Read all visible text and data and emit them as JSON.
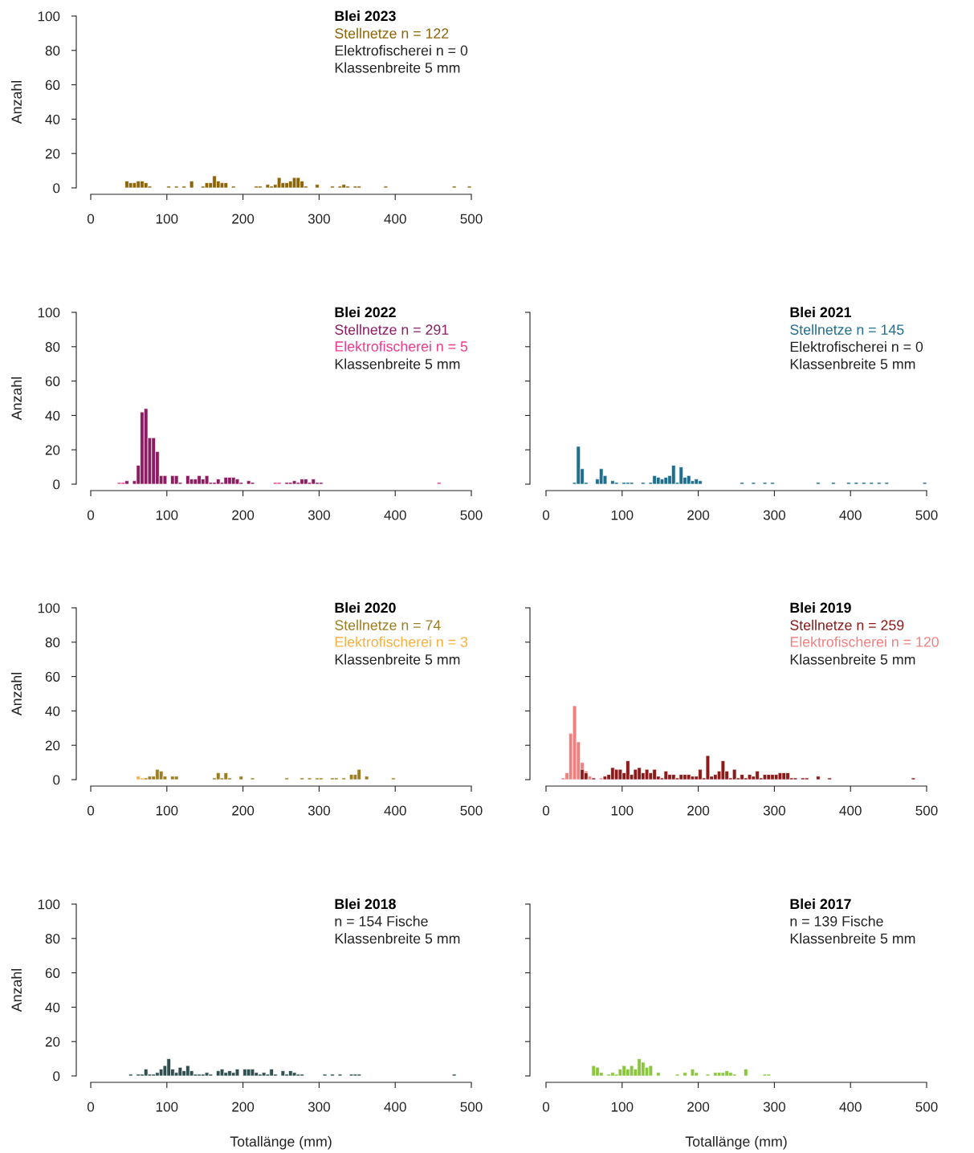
{
  "chart_data": [
    {
      "type": "histogram",
      "title": "Blei 2023",
      "ylabel": "Anzahl",
      "annotations": [
        "Elektrofischerei n = 0",
        "Klassenbreite 5 mm"
      ],
      "legend": "top right",
      "xlim": [
        0,
        500
      ],
      "ylim": [
        0,
        100
      ],
      "xticks": [
        0,
        100,
        200,
        300,
        400,
        500
      ],
      "yticks": [
        0,
        20,
        40,
        60,
        80,
        100
      ],
      "bins": [
        0,
        5,
        10,
        15,
        20,
        25,
        30,
        35,
        40,
        45,
        50,
        55,
        60,
        65,
        70,
        75,
        80,
        85,
        90,
        95,
        100,
        105,
        110,
        115,
        120,
        125,
        130,
        135,
        140,
        145,
        150,
        155,
        160,
        165,
        170,
        175,
        180,
        185,
        190,
        195,
        200,
        205,
        210,
        215,
        220,
        225,
        230,
        235,
        240,
        245,
        250,
        255,
        260,
        265,
        270,
        275,
        280,
        285,
        290,
        295,
        300,
        305,
        310,
        315,
        320,
        325,
        330,
        335,
        340,
        345,
        350,
        355,
        360,
        365,
        370,
        375,
        380,
        385,
        390,
        395,
        400,
        405,
        410,
        415,
        420,
        425,
        430,
        435,
        440,
        445,
        450,
        455,
        460,
        465,
        470,
        475,
        480,
        485,
        490,
        495,
        500
      ],
      "series": [
        {
          "name": "Stellnetze n = 122",
          "color": "#8b6508",
          "values": [
            0,
            0,
            0,
            0,
            0,
            0,
            0,
            0,
            0,
            4,
            3,
            3,
            4,
            4,
            3,
            1,
            0,
            0,
            0,
            0,
            1,
            0,
            1,
            0,
            1,
            0,
            4,
            0,
            0,
            1,
            3,
            3,
            7,
            4,
            3,
            3,
            0,
            1,
            0,
            0,
            0,
            0,
            0,
            1,
            1,
            0,
            2,
            1,
            2,
            6,
            3,
            3,
            4,
            6,
            6,
            4,
            1,
            0,
            0,
            2,
            0,
            0,
            0,
            1,
            0,
            1,
            2,
            1,
            0,
            1,
            1,
            0,
            0,
            0,
            0,
            0,
            0,
            1,
            0,
            0,
            0,
            0,
            0,
            0,
            0,
            0,
            0,
            0,
            0,
            0,
            0,
            0,
            0,
            0,
            0,
            1,
            0,
            0,
            0,
            1
          ]
        }
      ]
    },
    {
      "type": "histogram",
      "title": "Blei 2022",
      "ylabel": "Anzahl",
      "annotations": [
        "Klassenbreite 5 mm"
      ],
      "legend": "top right",
      "xlim": [
        0,
        500
      ],
      "ylim": [
        0,
        100
      ],
      "xticks": [
        0,
        100,
        200,
        300,
        400,
        500
      ],
      "yticks": [
        0,
        20,
        40,
        60,
        80,
        100
      ],
      "bins": [
        0,
        5,
        10,
        15,
        20,
        25,
        30,
        35,
        40,
        45,
        50,
        55,
        60,
        65,
        70,
        75,
        80,
        85,
        90,
        95,
        100,
        105,
        110,
        115,
        120,
        125,
        130,
        135,
        140,
        145,
        150,
        155,
        160,
        165,
        170,
        175,
        180,
        185,
        190,
        195,
        200,
        205,
        210,
        215,
        220,
        225,
        230,
        235,
        240,
        245,
        250,
        255,
        260,
        265,
        270,
        275,
        280,
        285,
        290,
        295,
        300,
        305,
        310,
        315,
        320,
        325,
        330,
        335,
        340,
        345,
        350,
        355,
        360,
        365,
        370,
        375,
        380,
        385,
        390,
        395,
        400,
        405,
        410,
        415,
        420,
        425,
        430,
        435,
        440,
        445,
        450,
        455,
        460,
        465,
        470,
        475,
        480,
        485,
        490,
        495,
        500
      ],
      "series": [
        {
          "name": "Stellnetze n = 291",
          "color": "#8b1c62",
          "values": [
            0,
            0,
            0,
            0,
            0,
            0,
            0,
            0,
            0,
            2,
            0,
            2,
            11,
            42,
            44,
            27,
            27,
            19,
            5,
            5,
            0,
            5,
            5,
            1,
            0,
            5,
            3,
            3,
            5,
            3,
            5,
            1,
            1,
            3,
            1,
            4,
            4,
            4,
            3,
            1,
            0,
            2,
            1,
            0,
            0,
            0,
            0,
            0,
            0,
            0,
            0,
            1,
            1,
            2,
            1,
            3,
            3,
            1,
            3,
            1,
            1,
            0,
            0,
            0,
            0,
            0,
            0,
            0,
            0,
            0,
            0,
            0,
            0,
            0,
            0,
            0,
            0,
            0,
            0,
            0,
            0,
            0,
            0,
            0,
            0,
            0,
            0,
            0,
            0,
            0,
            0,
            0,
            0,
            0,
            0,
            0,
            0,
            0,
            0,
            0
          ]
        },
        {
          "name": "Elektrofischerei n = 5",
          "color": "#ee3a8c",
          "values": [
            0,
            0,
            0,
            0,
            0,
            0,
            0,
            1,
            1,
            0,
            0,
            0,
            0,
            0,
            0,
            0,
            0,
            0,
            0,
            0,
            0,
            0,
            0,
            0,
            0,
            0,
            0,
            0,
            0,
            0,
            0,
            0,
            0,
            0,
            0,
            0,
            0,
            0,
            0,
            0,
            0,
            0,
            0,
            0,
            0,
            0,
            0,
            0,
            1,
            1,
            0,
            0,
            0,
            0,
            0,
            0,
            0,
            0,
            0,
            0,
            0,
            0,
            0,
            0,
            0,
            0,
            0,
            0,
            0,
            0,
            0,
            0,
            0,
            0,
            0,
            0,
            0,
            0,
            0,
            0,
            0,
            0,
            0,
            0,
            0,
            0,
            0,
            0,
            0,
            0,
            0,
            1,
            0,
            0,
            0,
            0,
            0,
            0,
            0,
            0
          ]
        }
      ]
    },
    {
      "type": "histogram",
      "title": "Blei 2021",
      "tick_labels": "x",
      "annotations": [
        "Elektrofischerei n = 0",
        "Klassenbreite 5 mm"
      ],
      "legend": "top right",
      "xlim": [
        0,
        500
      ],
      "ylim": [
        0,
        100
      ],
      "xticks": [
        0,
        100,
        200,
        300,
        400,
        500
      ],
      "yticks": [
        0,
        20,
        40,
        60,
        80,
        100
      ],
      "bins": [
        0,
        5,
        10,
        15,
        20,
        25,
        30,
        35,
        40,
        45,
        50,
        55,
        60,
        65,
        70,
        75,
        80,
        85,
        90,
        95,
        100,
        105,
        110,
        115,
        120,
        125,
        130,
        135,
        140,
        145,
        150,
        155,
        160,
        165,
        170,
        175,
        180,
        185,
        190,
        195,
        200,
        205,
        210,
        215,
        220,
        225,
        230,
        235,
        240,
        245,
        250,
        255,
        260,
        265,
        270,
        275,
        280,
        285,
        290,
        295,
        300,
        305,
        310,
        315,
        320,
        325,
        330,
        335,
        340,
        345,
        350,
        355,
        360,
        365,
        370,
        375,
        380,
        385,
        390,
        395,
        400,
        405,
        410,
        415,
        420,
        425,
        430,
        435,
        440,
        445,
        450,
        455,
        460,
        465,
        470,
        475,
        480,
        485,
        490,
        495,
        500
      ],
      "series": [
        {
          "name": "Stellnetze n = 145",
          "color": "#1e6e8e",
          "values": [
            0,
            0,
            0,
            0,
            0,
            0,
            0,
            1,
            22,
            9,
            1,
            0,
            0,
            3,
            9,
            5,
            0,
            2,
            1,
            0,
            1,
            1,
            1,
            0,
            0,
            1,
            0,
            1,
            5,
            4,
            3,
            4,
            5,
            11,
            1,
            10,
            4,
            5,
            2,
            3,
            2,
            0,
            0,
            0,
            0,
            0,
            0,
            0,
            0,
            0,
            0,
            1,
            0,
            0,
            1,
            0,
            0,
            1,
            0,
            1,
            0,
            0,
            0,
            0,
            0,
            0,
            0,
            0,
            0,
            0,
            0,
            1,
            0,
            0,
            0,
            1,
            0,
            0,
            0,
            1,
            0,
            1,
            0,
            1,
            0,
            1,
            0,
            1,
            0,
            1,
            0,
            0,
            0,
            0,
            0,
            0,
            0,
            0,
            0,
            1
          ]
        }
      ]
    },
    {
      "type": "histogram",
      "title": "Blei 2020",
      "ylabel": "Anzahl",
      "annotations": [
        "Klassenbreite 5 mm"
      ],
      "legend": "top right",
      "xlim": [
        0,
        500
      ],
      "ylim": [
        0,
        100
      ],
      "xticks": [
        0,
        100,
        200,
        300,
        400,
        500
      ],
      "yticks": [
        0,
        20,
        40,
        60,
        80,
        100
      ],
      "bins": [
        0,
        5,
        10,
        15,
        20,
        25,
        30,
        35,
        40,
        45,
        50,
        55,
        60,
        65,
        70,
        75,
        80,
        85,
        90,
        95,
        100,
        105,
        110,
        115,
        120,
        125,
        130,
        135,
        140,
        145,
        150,
        155,
        160,
        165,
        170,
        175,
        180,
        185,
        190,
        195,
        200,
        205,
        210,
        215,
        220,
        225,
        230,
        235,
        240,
        245,
        250,
        255,
        260,
        265,
        270,
        275,
        280,
        285,
        290,
        295,
        300,
        305,
        310,
        315,
        320,
        325,
        330,
        335,
        340,
        345,
        350,
        355,
        360,
        365,
        370,
        375,
        380,
        385,
        390,
        395,
        400,
        405,
        410,
        415,
        420,
        425,
        430,
        435,
        440,
        445,
        450,
        455,
        460,
        465,
        470,
        475,
        480,
        485,
        490,
        495,
        500
      ],
      "series": [
        {
          "name": "Stellnetze n = 74",
          "color": "#9c7e22",
          "values": [
            0,
            0,
            0,
            0,
            0,
            0,
            0,
            0,
            0,
            0,
            0,
            0,
            0,
            0,
            1,
            2,
            2,
            6,
            5,
            2,
            0,
            2,
            2,
            0,
            0,
            0,
            0,
            0,
            0,
            0,
            0,
            0,
            1,
            4,
            1,
            4,
            1,
            0,
            0,
            2,
            0,
            0,
            1,
            0,
            0,
            0,
            0,
            0,
            0,
            0,
            0,
            1,
            0,
            0,
            0,
            1,
            0,
            1,
            0,
            1,
            1,
            0,
            0,
            1,
            1,
            0,
            1,
            0,
            3,
            3,
            6,
            0,
            2,
            0,
            0,
            0,
            0,
            0,
            0,
            1,
            0,
            0,
            0,
            0,
            0,
            0,
            0,
            0,
            0,
            0,
            0,
            0,
            0,
            0,
            0,
            0,
            0,
            0,
            0,
            0
          ]
        },
        {
          "name": "Elektrofischerei n = 3",
          "color": "#f5b041",
          "values": [
            0,
            0,
            0,
            0,
            0,
            0,
            0,
            0,
            0,
            0,
            0,
            0,
            2,
            1,
            0,
            0,
            0,
            0,
            0,
            0,
            0,
            0,
            0,
            0,
            0,
            0,
            0,
            0,
            0,
            0,
            0,
            0,
            0,
            0,
            0,
            0,
            0,
            0,
            0,
            0,
            0,
            0,
            0,
            0,
            0,
            0,
            0,
            0,
            0,
            0,
            0,
            0,
            0,
            0,
            0,
            0,
            0,
            0,
            0,
            0,
            0,
            0,
            0,
            0,
            0,
            0,
            0,
            0,
            0,
            0,
            0,
            0,
            0,
            0,
            0,
            0,
            0,
            0,
            0,
            0,
            0,
            0,
            0,
            0,
            0,
            0,
            0,
            0,
            0,
            0,
            0,
            0,
            0,
            0,
            0,
            0,
            0,
            0,
            0,
            0
          ]
        }
      ]
    },
    {
      "type": "histogram",
      "title": "Blei 2019",
      "tick_labels": "x",
      "annotations": [
        "Klassenbreite 5 mm"
      ],
      "legend": "top right",
      "xlim": [
        0,
        500
      ],
      "ylim": [
        0,
        100
      ],
      "xticks": [
        0,
        100,
        200,
        300,
        400,
        500
      ],
      "yticks": [
        0,
        20,
        40,
        60,
        80,
        100
      ],
      "bins": [
        0,
        5,
        10,
        15,
        20,
        25,
        30,
        35,
        40,
        45,
        50,
        55,
        60,
        65,
        70,
        75,
        80,
        85,
        90,
        95,
        100,
        105,
        110,
        115,
        120,
        125,
        130,
        135,
        140,
        145,
        150,
        155,
        160,
        165,
        170,
        175,
        180,
        185,
        190,
        195,
        200,
        205,
        210,
        215,
        220,
        225,
        230,
        235,
        240,
        245,
        250,
        255,
        260,
        265,
        270,
        275,
        280,
        285,
        290,
        295,
        300,
        305,
        310,
        315,
        320,
        325,
        330,
        335,
        340,
        345,
        350,
        355,
        360,
        365,
        370,
        375,
        380,
        385,
        390,
        395,
        400,
        405,
        410,
        415,
        420,
        425,
        430,
        435,
        440,
        445,
        450,
        455,
        460,
        465,
        470,
        475,
        480,
        485,
        490,
        495,
        500
      ],
      "series": [
        {
          "name": "Stellnetze n = 259",
          "color": "#8b1a1a",
          "values": [
            0,
            0,
            0,
            0,
            0,
            0,
            0,
            0,
            0,
            6,
            4,
            0,
            1,
            0,
            0,
            2,
            3,
            7,
            6,
            6,
            4,
            11,
            3,
            6,
            7,
            4,
            6,
            4,
            6,
            2,
            1,
            5,
            3,
            3,
            1,
            3,
            3,
            3,
            2,
            2,
            6,
            1,
            14,
            2,
            3,
            5,
            11,
            5,
            1,
            6,
            1,
            3,
            1,
            3,
            2,
            5,
            1,
            3,
            3,
            3,
            3,
            4,
            4,
            4,
            1,
            1,
            0,
            1,
            1,
            0,
            0,
            2,
            0,
            0,
            1,
            0,
            0,
            0,
            0,
            0,
            0,
            0,
            0,
            0,
            0,
            0,
            0,
            0,
            0,
            0,
            0,
            0,
            0,
            0,
            0,
            0,
            1,
            0,
            0,
            0
          ]
        },
        {
          "name": "Elektrofischerei n = 120",
          "color": "#f08080",
          "values": [
            0,
            0,
            0,
            0,
            1,
            4,
            27,
            43,
            22,
            10,
            5,
            2,
            0,
            0,
            1,
            0,
            0,
            0,
            0,
            0,
            0,
            0,
            0,
            0,
            0,
            0,
            0,
            0,
            0,
            0,
            0,
            0,
            0,
            0,
            0,
            0,
            0,
            0,
            0,
            0,
            0,
            0,
            0,
            0,
            0,
            0,
            0,
            0,
            0,
            0,
            0,
            0,
            0,
            0,
            0,
            0,
            0,
            0,
            0,
            0,
            0,
            0,
            0,
            0,
            0,
            0,
            0,
            0,
            0,
            0,
            0,
            0,
            0,
            0,
            0,
            0,
            0,
            0,
            0,
            0,
            0,
            0,
            0,
            0,
            0,
            0,
            0,
            0,
            0,
            0,
            0,
            0,
            0,
            0,
            0,
            0,
            0,
            0,
            0,
            0
          ]
        }
      ]
    },
    {
      "type": "histogram",
      "title": "Blei 2018",
      "ylabel": "Anzahl",
      "xlabel": "Totallänge (mm)",
      "annotations": [
        "n = 154 Fische",
        "Klassenbreite 5 mm"
      ],
      "xlim": [
        0,
        500
      ],
      "ylim": [
        0,
        100
      ],
      "xticks": [
        0,
        100,
        200,
        300,
        400,
        500
      ],
      "yticks": [
        0,
        20,
        40,
        60,
        80,
        100
      ],
      "bins": [
        0,
        5,
        10,
        15,
        20,
        25,
        30,
        35,
        40,
        45,
        50,
        55,
        60,
        65,
        70,
        75,
        80,
        85,
        90,
        95,
        100,
        105,
        110,
        115,
        120,
        125,
        130,
        135,
        140,
        145,
        150,
        155,
        160,
        165,
        170,
        175,
        180,
        185,
        190,
        195,
        200,
        205,
        210,
        215,
        220,
        225,
        230,
        235,
        240,
        245,
        250,
        255,
        260,
        265,
        270,
        275,
        280,
        285,
        290,
        295,
        300,
        305,
        310,
        315,
        320,
        325,
        330,
        335,
        340,
        345,
        350,
        355,
        360,
        365,
        370,
        375,
        380,
        385,
        390,
        395,
        400,
        405,
        410,
        415,
        420,
        425,
        430,
        435,
        440,
        445,
        450,
        455,
        460,
        465,
        470,
        475,
        480,
        485,
        490,
        495,
        500
      ],
      "color": "#2f4f4f",
      "values": [
        0,
        0,
        0,
        0,
        0,
        0,
        0,
        0,
        0,
        0,
        1,
        0,
        1,
        1,
        4,
        1,
        1,
        2,
        4,
        6,
        10,
        4,
        2,
        5,
        3,
        6,
        3,
        1,
        1,
        1,
        2,
        1,
        0,
        3,
        4,
        2,
        3,
        2,
        4,
        0,
        4,
        4,
        4,
        2,
        1,
        2,
        1,
        4,
        1,
        0,
        3,
        1,
        3,
        2,
        1,
        1,
        0,
        0,
        0,
        0,
        0,
        1,
        0,
        1,
        0,
        1,
        0,
        0,
        1,
        1,
        1,
        0,
        0,
        0,
        0,
        0,
        0,
        0,
        0,
        0,
        0,
        0,
        0,
        0,
        0,
        0,
        0,
        0,
        0,
        0,
        0,
        0,
        0,
        0,
        0,
        1,
        0,
        0,
        0,
        0
      ]
    },
    {
      "type": "histogram",
      "title": "Blei 2017",
      "tick_labels": "x",
      "xlabel": "Totallänge (mm)",
      "annotations": [
        "n = 139 Fische",
        "Klassenbreite 5 mm"
      ],
      "xlim": [
        0,
        500
      ],
      "ylim": [
        0,
        100
      ],
      "xticks": [
        0,
        100,
        200,
        300,
        400,
        500
      ],
      "yticks": [
        0,
        20,
        40,
        60,
        80,
        100
      ],
      "bins": [
        0,
        5,
        10,
        15,
        20,
        25,
        30,
        35,
        40,
        45,
        50,
        55,
        60,
        65,
        70,
        75,
        80,
        85,
        90,
        95,
        100,
        105,
        110,
        115,
        120,
        125,
        130,
        135,
        140,
        145,
        150,
        155,
        160,
        165,
        170,
        175,
        180,
        185,
        190,
        195,
        200,
        205,
        210,
        215,
        220,
        225,
        230,
        235,
        240,
        245,
        250,
        255,
        260,
        265,
        270,
        275,
        280,
        285,
        290,
        295,
        300,
        305,
        310,
        315,
        320,
        325,
        330,
        335,
        340,
        345,
        350,
        355,
        360,
        365,
        370,
        375,
        380,
        385,
        390,
        395,
        400,
        405,
        410,
        415,
        420,
        425,
        430,
        435,
        440,
        445,
        450,
        455,
        460,
        465,
        470,
        475,
        480,
        485,
        490,
        495,
        500
      ],
      "color": "#8cc63e",
      "values": [
        0,
        0,
        0,
        0,
        0,
        0,
        0,
        0,
        0,
        0,
        0,
        0,
        6,
        5,
        2,
        0,
        1,
        2,
        1,
        4,
        6,
        4,
        6,
        4,
        10,
        8,
        5,
        6,
        0,
        2,
        0,
        0,
        0,
        0,
        1,
        0,
        2,
        0,
        4,
        2,
        0,
        0,
        1,
        0,
        2,
        2,
        2,
        3,
        2,
        1,
        0,
        0,
        4,
        0,
        0,
        0,
        0,
        1,
        1,
        0,
        0,
        0,
        0,
        0,
        0,
        0,
        0,
        0,
        0,
        0,
        0,
        0,
        0,
        0,
        0,
        0,
        0,
        0,
        0,
        0,
        0,
        0,
        0,
        0,
        0,
        0,
        0,
        0,
        0,
        0,
        0,
        0,
        0,
        0,
        0,
        0,
        0,
        0,
        0,
        0
      ]
    }
  ]
}
